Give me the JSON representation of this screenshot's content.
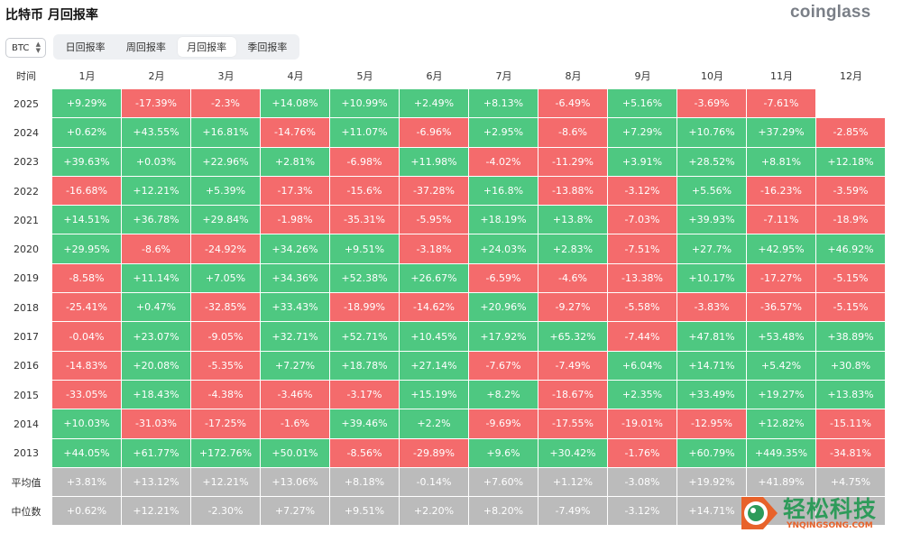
{
  "header": {
    "title": "比特币 月回报率",
    "brand": "coinglass"
  },
  "asset_select": {
    "value": "BTC"
  },
  "tabs": [
    {
      "label": "日回报率",
      "active": false
    },
    {
      "label": "周回报率",
      "active": false
    },
    {
      "label": "月回报率",
      "active": true
    },
    {
      "label": "季回报率",
      "active": false
    }
  ],
  "table": {
    "corner": "时间",
    "months": [
      "1月",
      "2月",
      "3月",
      "4月",
      "5月",
      "6月",
      "7月",
      "8月",
      "9月",
      "10月",
      "11月",
      "12月"
    ],
    "rows": [
      {
        "year": "2025",
        "values": [
          "+9.29%",
          "-17.39%",
          "-2.3%",
          "+14.08%",
          "+10.99%",
          "+2.49%",
          "+8.13%",
          "-6.49%",
          "+5.16%",
          "-3.69%",
          "-7.61%",
          ""
        ]
      },
      {
        "year": "2024",
        "values": [
          "+0.62%",
          "+43.55%",
          "+16.81%",
          "-14.76%",
          "+11.07%",
          "-6.96%",
          "+2.95%",
          "-8.6%",
          "+7.29%",
          "+10.76%",
          "+37.29%",
          "-2.85%"
        ]
      },
      {
        "year": "2023",
        "values": [
          "+39.63%",
          "+0.03%",
          "+22.96%",
          "+2.81%",
          "-6.98%",
          "+11.98%",
          "-4.02%",
          "-11.29%",
          "+3.91%",
          "+28.52%",
          "+8.81%",
          "+12.18%"
        ]
      },
      {
        "year": "2022",
        "values": [
          "-16.68%",
          "+12.21%",
          "+5.39%",
          "-17.3%",
          "-15.6%",
          "-37.28%",
          "+16.8%",
          "-13.88%",
          "-3.12%",
          "+5.56%",
          "-16.23%",
          "-3.59%"
        ]
      },
      {
        "year": "2021",
        "values": [
          "+14.51%",
          "+36.78%",
          "+29.84%",
          "-1.98%",
          "-35.31%",
          "-5.95%",
          "+18.19%",
          "+13.8%",
          "-7.03%",
          "+39.93%",
          "-7.11%",
          "-18.9%"
        ]
      },
      {
        "year": "2020",
        "values": [
          "+29.95%",
          "-8.6%",
          "-24.92%",
          "+34.26%",
          "+9.51%",
          "-3.18%",
          "+24.03%",
          "+2.83%",
          "-7.51%",
          "+27.7%",
          "+42.95%",
          "+46.92%"
        ]
      },
      {
        "year": "2019",
        "values": [
          "-8.58%",
          "+11.14%",
          "+7.05%",
          "+34.36%",
          "+52.38%",
          "+26.67%",
          "-6.59%",
          "-4.6%",
          "-13.38%",
          "+10.17%",
          "-17.27%",
          "-5.15%"
        ]
      },
      {
        "year": "2018",
        "values": [
          "-25.41%",
          "+0.47%",
          "-32.85%",
          "+33.43%",
          "-18.99%",
          "-14.62%",
          "+20.96%",
          "-9.27%",
          "-5.58%",
          "-3.83%",
          "-36.57%",
          "-5.15%"
        ]
      },
      {
        "year": "2017",
        "values": [
          "-0.04%",
          "+23.07%",
          "-9.05%",
          "+32.71%",
          "+52.71%",
          "+10.45%",
          "+17.92%",
          "+65.32%",
          "-7.44%",
          "+47.81%",
          "+53.48%",
          "+38.89%"
        ]
      },
      {
        "year": "2016",
        "values": [
          "-14.83%",
          "+20.08%",
          "-5.35%",
          "+7.27%",
          "+18.78%",
          "+27.14%",
          "-7.67%",
          "-7.49%",
          "+6.04%",
          "+14.71%",
          "+5.42%",
          "+30.8%"
        ]
      },
      {
        "year": "2015",
        "values": [
          "-33.05%",
          "+18.43%",
          "-4.38%",
          "-3.46%",
          "-3.17%",
          "+15.19%",
          "+8.2%",
          "-18.67%",
          "+2.35%",
          "+33.49%",
          "+19.27%",
          "+13.83%"
        ]
      },
      {
        "year": "2014",
        "values": [
          "+10.03%",
          "-31.03%",
          "-17.25%",
          "-1.6%",
          "+39.46%",
          "+2.2%",
          "-9.69%",
          "-17.55%",
          "-19.01%",
          "-12.95%",
          "+12.82%",
          "-15.11%"
        ]
      },
      {
        "year": "2013",
        "values": [
          "+44.05%",
          "+61.77%",
          "+172.76%",
          "+50.01%",
          "-8.56%",
          "-29.89%",
          "+9.6%",
          "+30.42%",
          "-1.76%",
          "+60.79%",
          "+449.35%",
          "-34.81%"
        ]
      }
    ],
    "stats": [
      {
        "label": "平均值",
        "values": [
          "+3.81%",
          "+13.12%",
          "+12.21%",
          "+13.06%",
          "+8.18%",
          "-0.14%",
          "+7.60%",
          "+1.12%",
          "-3.08%",
          "+19.92%",
          "+41.89%",
          "+4.75%"
        ]
      },
      {
        "label": "中位数",
        "values": [
          "+0.62%",
          "+12.21%",
          "-2.30%",
          "+7.27%",
          "+9.51%",
          "+2.20%",
          "+8.20%",
          "-7.49%",
          "-3.12%",
          "+14.71%",
          "",
          ""
        ]
      }
    ]
  },
  "watermark": {
    "text": "轻松科技",
    "sub": "YNQINGSONG.COM"
  },
  "colors": {
    "positive": "#4ec881",
    "negative": "#f46b6c",
    "stat": "#bbbbbb"
  }
}
